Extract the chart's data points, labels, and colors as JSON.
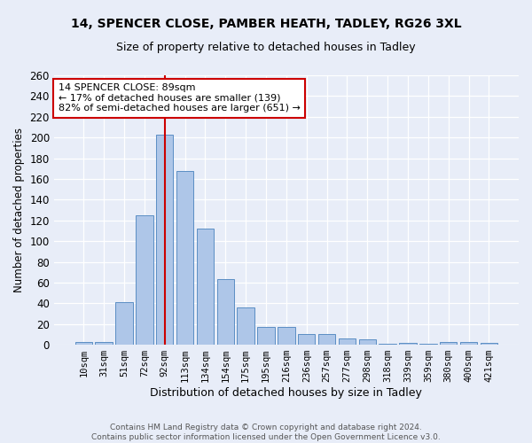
{
  "title1": "14, SPENCER CLOSE, PAMBER HEATH, TADLEY, RG26 3XL",
  "title2": "Size of property relative to detached houses in Tadley",
  "xlabel": "Distribution of detached houses by size in Tadley",
  "ylabel": "Number of detached properties",
  "categories": [
    "10sqm",
    "31sqm",
    "51sqm",
    "72sqm",
    "92sqm",
    "113sqm",
    "134sqm",
    "154sqm",
    "175sqm",
    "195sqm",
    "216sqm",
    "236sqm",
    "257sqm",
    "277sqm",
    "298sqm",
    "318sqm",
    "339sqm",
    "359sqm",
    "380sqm",
    "400sqm",
    "421sqm"
  ],
  "values": [
    3,
    3,
    41,
    125,
    203,
    168,
    112,
    63,
    36,
    17,
    17,
    10,
    10,
    6,
    5,
    1,
    2,
    1,
    3,
    3,
    2
  ],
  "bar_color": "#aec6e8",
  "bar_edge_color": "#5b8ec4",
  "vline_x": 4,
  "vline_color": "#cc0000",
  "annotation_line1": "14 SPENCER CLOSE: 89sqm",
  "annotation_line2": "← 17% of detached houses are smaller (139)",
  "annotation_line3": "82% of semi-detached houses are larger (651) →",
  "annotation_box_color": "white",
  "annotation_box_edge": "#cc0000",
  "footer1": "Contains HM Land Registry data © Crown copyright and database right 2024.",
  "footer2": "Contains public sector information licensed under the Open Government Licence v3.0.",
  "bg_color": "#e8edf8",
  "plot_bg_color": "#e8edf8",
  "ylim": [
    0,
    260
  ],
  "yticks": [
    0,
    20,
    40,
    60,
    80,
    100,
    120,
    140,
    160,
    180,
    200,
    220,
    240,
    260
  ]
}
